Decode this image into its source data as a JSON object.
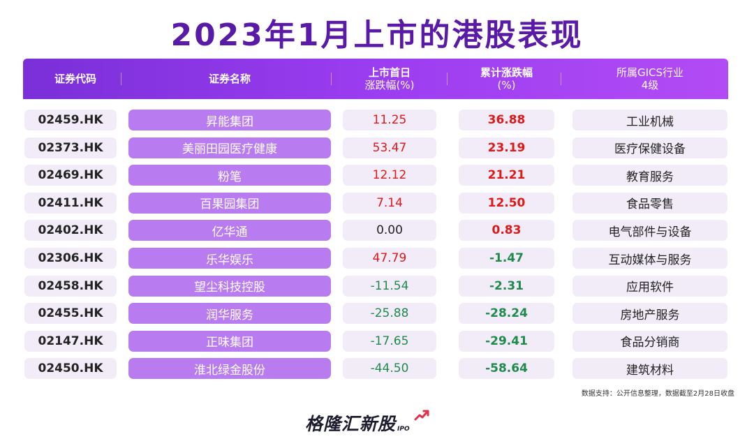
{
  "title": "2023年1月上市的港股表现",
  "header": {
    "code": "证券代码",
    "name": "证券名称",
    "first_day_line1": "上市首日",
    "first_day_line2": "涨跌幅(%)",
    "cum_line1": "累计涨跌幅",
    "cum_line2": "(%)",
    "industry_line1": "所属GICS行业",
    "industry_line2": "4级"
  },
  "rows": [
    {
      "code": "02459.HK",
      "name": "昇能集团",
      "first_day": "11.25",
      "cumulative": "36.88",
      "industry": "工业机械",
      "first_color": "red",
      "cum_color": "red"
    },
    {
      "code": "02373.HK",
      "name": "美丽田园医疗健康",
      "first_day": "53.47",
      "cumulative": "23.19",
      "industry": "医疗保健设备",
      "first_color": "red",
      "cum_color": "red"
    },
    {
      "code": "02469.HK",
      "name": "粉笔",
      "first_day": "12.12",
      "cumulative": "21.21",
      "industry": "教育服务",
      "first_color": "red",
      "cum_color": "red"
    },
    {
      "code": "02411.HK",
      "name": "百果园集团",
      "first_day": "7.14",
      "cumulative": "12.50",
      "industry": "食品零售",
      "first_color": "red",
      "cum_color": "red"
    },
    {
      "code": "02402.HK",
      "name": "亿华通",
      "first_day": "0.00",
      "cumulative": "0.83",
      "industry": "电气部件与设备",
      "first_color": "black",
      "cum_color": "red"
    },
    {
      "code": "02306.HK",
      "name": "乐华娱乐",
      "first_day": "47.79",
      "cumulative": "-1.47",
      "industry": "互动媒体与服务",
      "first_color": "red",
      "cum_color": "green"
    },
    {
      "code": "02458.HK",
      "name": "望尘科技控股",
      "first_day": "-11.54",
      "cumulative": "-2.31",
      "industry": "应用软件",
      "first_color": "green",
      "cum_color": "green"
    },
    {
      "code": "02455.HK",
      "name": "润华服务",
      "first_day": "-25.88",
      "cumulative": "-28.24",
      "industry": "房地产服务",
      "first_color": "green",
      "cum_color": "green"
    },
    {
      "code": "02147.HK",
      "name": "正味集团",
      "first_day": "-17.65",
      "cumulative": "-29.41",
      "industry": "食品分销商",
      "first_color": "green",
      "cum_color": "green"
    },
    {
      "code": "02450.HK",
      "name": "淮北绿金股份",
      "first_day": "-44.50",
      "cumulative": "-58.64",
      "industry": "建筑材料",
      "first_color": "green",
      "cum_color": "green"
    }
  ],
  "source": "数据支持：公开信息整理，数据截至2月28日收盘",
  "logo": {
    "text": "格隆汇新股",
    "sub": "IPO"
  },
  "colors": {
    "accent": "#8a37e6",
    "name_pill": "#b87cf0",
    "positive": "#e01818",
    "negative": "#1f8a4c",
    "cell_bg": "#f1ecf7"
  }
}
